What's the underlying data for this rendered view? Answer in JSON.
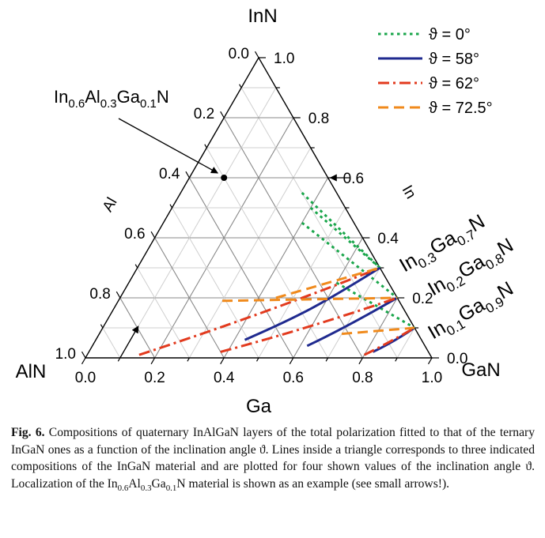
{
  "chart_data": {
    "type": "ternary-line",
    "vertices": {
      "top": "InN",
      "left": "AlN",
      "right": "GaN"
    },
    "axis_labels": {
      "bottom": "Ga",
      "left": "Al",
      "right": "In"
    },
    "ticks": {
      "ga": [
        "0.0",
        "0.2",
        "0.4",
        "0.6",
        "0.8",
        "1.0"
      ],
      "al": [
        "0.0",
        "0.2",
        "0.4",
        "0.6",
        "0.8",
        "1.0"
      ],
      "in": [
        "0.0",
        "0.2",
        "0.4",
        "0.6",
        "0.8",
        "1.0"
      ]
    },
    "grid_step": 0.1,
    "grid": true,
    "colors": {
      "d0": "#1aa64b",
      "d58": "#1f2a8f",
      "d62": "#e23a1e",
      "d72": "#f08a1c",
      "axis": "#000000",
      "grid_major": "#888888",
      "grid_minor": "#cfcfcf"
    },
    "legend": {
      "position": "top-right",
      "entries": [
        {
          "series": "d0",
          "label": "ϑ = 0°",
          "dash": "dotted"
        },
        {
          "series": "d58",
          "label": "ϑ = 58°",
          "dash": "solid"
        },
        {
          "series": "d62",
          "label": "ϑ = 62°",
          "dash": "dash-dot"
        },
        {
          "series": "d72",
          "label": "ϑ = 72.5°",
          "dash": "dashed"
        }
      ]
    },
    "compositions": [
      {
        "base": "In",
        "sub1": "0.3",
        "mid": "Ga",
        "sub2": "0.7",
        "tail": "N",
        "in": 0.3
      },
      {
        "base": "In",
        "sub1": "0.2",
        "mid": "Ga",
        "sub2": "0.8",
        "tail": "N",
        "in": 0.2
      },
      {
        "base": "In",
        "sub1": "0.1",
        "mid": "Ga",
        "sub2": "0.9",
        "tail": "N",
        "in": 0.1
      }
    ],
    "series": [
      {
        "key": "d0",
        "in_ternary": 0.3,
        "points": [
          {
            "ga": 0.4,
            "in": 0.5,
            "al": 0.1
          },
          {
            "ga": 0.7,
            "in": 0.3,
            "al": 0.0
          }
        ]
      },
      {
        "key": "d0",
        "in_ternary": 0.3,
        "points": [
          {
            "ga": 0.35,
            "in": 0.55,
            "al": 0.1
          },
          {
            "ga": 0.7,
            "in": 0.3,
            "al": 0.0
          }
        ]
      },
      {
        "key": "d0",
        "in_ternary": 0.2,
        "points": [
          {
            "ga": 0.4,
            "in": 0.45,
            "al": 0.15
          },
          {
            "ga": 0.8,
            "in": 0.2,
            "al": 0.0
          }
        ]
      },
      {
        "key": "d0",
        "in_ternary": 0.1,
        "points": [
          {
            "ga": 0.6,
            "in": 0.25,
            "al": 0.15
          },
          {
            "ga": 0.9,
            "in": 0.1,
            "al": 0.0
          }
        ]
      },
      {
        "key": "d58",
        "in_ternary": 0.3,
        "points": [
          {
            "ga": 0.43,
            "in": 0.06,
            "al": 0.51
          },
          {
            "ga": 0.52,
            "in": 0.12,
            "al": 0.36
          },
          {
            "ga": 0.62,
            "in": 0.21,
            "al": 0.17
          },
          {
            "ga": 0.7,
            "in": 0.3,
            "al": 0.0
          }
        ]
      },
      {
        "key": "d58",
        "in_ternary": 0.2,
        "points": [
          {
            "ga": 0.62,
            "in": 0.04,
            "al": 0.34
          },
          {
            "ga": 0.7,
            "in": 0.1,
            "al": 0.2
          },
          {
            "ga": 0.8,
            "in": 0.2,
            "al": 0.0
          }
        ]
      },
      {
        "key": "d58",
        "in_ternary": 0.1,
        "points": [
          {
            "ga": 0.82,
            "in": 0.02,
            "al": 0.16
          },
          {
            "ga": 0.86,
            "in": 0.05,
            "al": 0.09
          },
          {
            "ga": 0.9,
            "in": 0.1,
            "al": 0.0
          }
        ]
      },
      {
        "key": "d62",
        "in_ternary": 0.3,
        "points": [
          {
            "ga": 0.15,
            "in": 0.01,
            "al": 0.84
          },
          {
            "ga": 0.45,
            "in": 0.15,
            "al": 0.4
          },
          {
            "ga": 0.7,
            "in": 0.3,
            "al": 0.0
          }
        ]
      },
      {
        "key": "d62",
        "in_ternary": 0.2,
        "points": [
          {
            "ga": 0.38,
            "in": 0.02,
            "al": 0.6
          },
          {
            "ga": 0.6,
            "in": 0.1,
            "al": 0.3
          },
          {
            "ga": 0.8,
            "in": 0.2,
            "al": 0.0
          }
        ]
      },
      {
        "key": "d62",
        "in_ternary": 0.1,
        "points": [
          {
            "ga": 0.8,
            "in": 0.01,
            "al": 0.19
          },
          {
            "ga": 0.85,
            "in": 0.05,
            "al": 0.1
          },
          {
            "ga": 0.9,
            "in": 0.1,
            "al": 0.0
          }
        ]
      },
      {
        "key": "d72",
        "in_ternary": 0.3,
        "points": [
          {
            "ga": 0.45,
            "in": 0.2,
            "al": 0.35
          },
          {
            "ga": 0.7,
            "in": 0.3,
            "al": 0.0
          }
        ]
      },
      {
        "key": "d72",
        "in_ternary": 0.2,
        "points": [
          {
            "ga": 0.3,
            "in": 0.19,
            "al": 0.51
          },
          {
            "ga": 0.8,
            "in": 0.2,
            "al": 0.0
          }
        ]
      },
      {
        "key": "d72",
        "in_ternary": 0.1,
        "points": [
          {
            "ga": 0.7,
            "in": 0.08,
            "al": 0.22
          },
          {
            "ga": 0.9,
            "in": 0.1,
            "al": 0.0
          }
        ]
      }
    ],
    "example_point": {
      "label_base": "In",
      "s1": "0.6",
      "m1": "Al",
      "s2": "0.3",
      "m2": "Ga",
      "s3": "0.1",
      "tail": "N",
      "ga": 0.1,
      "in": 0.6,
      "al": 0.3
    }
  },
  "caption": {
    "label": "Fig. 6.",
    "text1": " Compositions of quaternary InAlGaN layers of the total polarization fitted to that of the ternary InGaN ones as a function of the inclination angle ϑ. Lines inside a triangle corresponds to three indicated compositions of the InGaN material and are plotted for four shown values of the inclination angle ϑ. Localization of the In",
    "s1": "0.6",
    "m1": "Al",
    "s2": "0.3",
    "m2": "Ga",
    "s3": "0.1",
    "text2": "N material is shown as an example (see small arrows!)."
  }
}
